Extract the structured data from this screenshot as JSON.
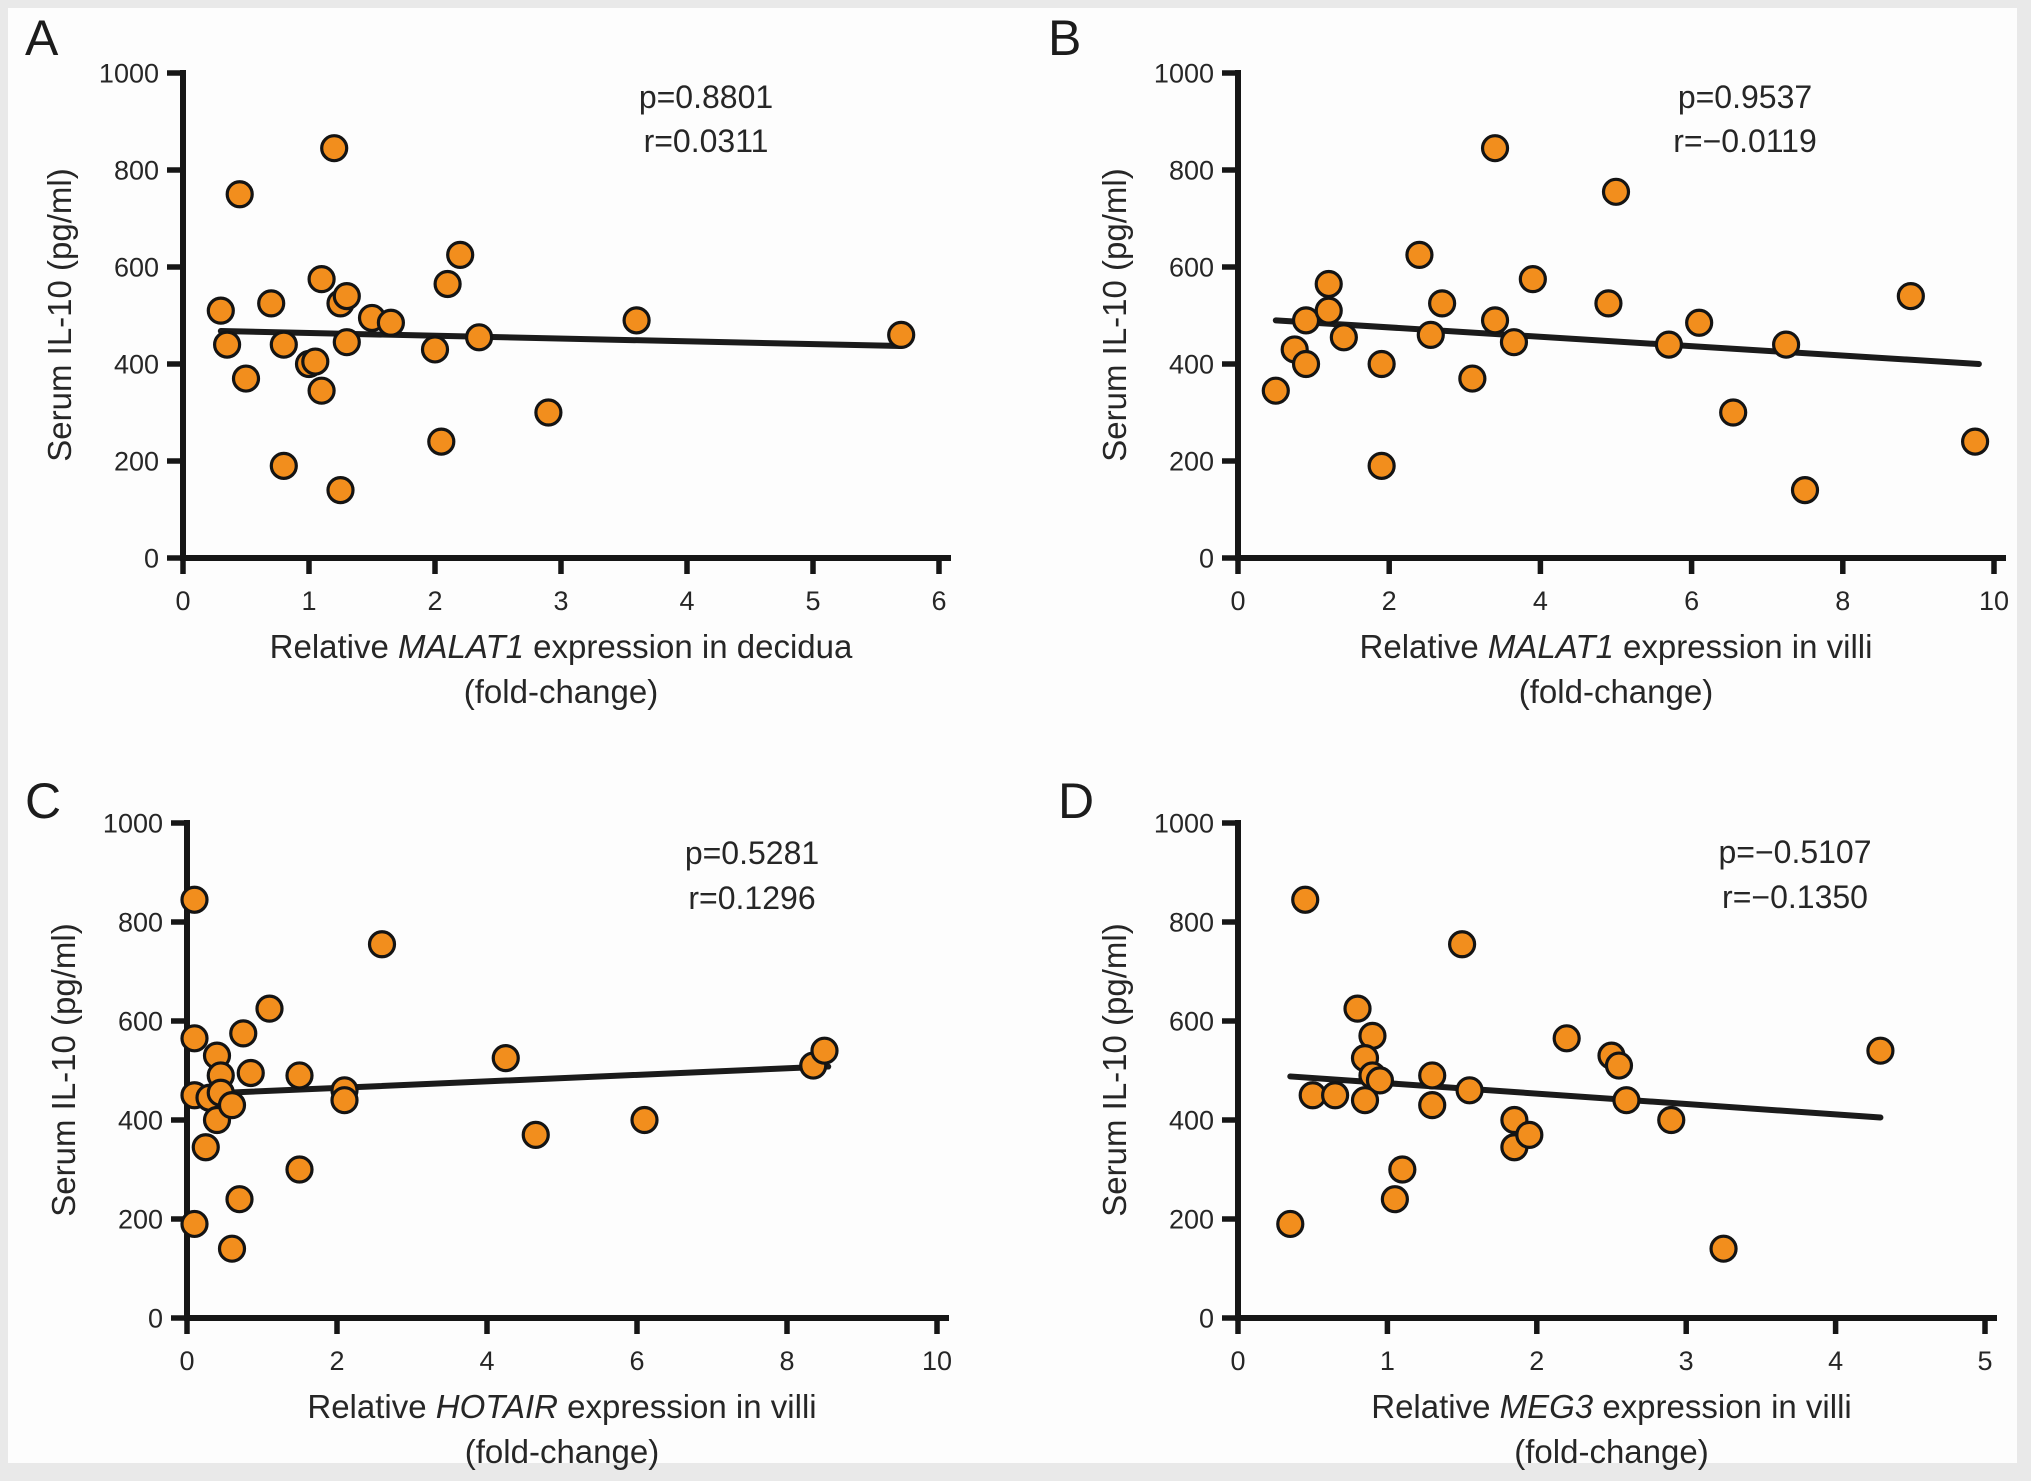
{
  "figure": {
    "background": "#fdfdfd",
    "frame_color": "#e9e9e9",
    "marker_color": "#F28E1D",
    "marker_stroke": "#141414",
    "axis_color": "#161616",
    "trend_color": "#1b1b1b",
    "text_color": "#262626"
  },
  "chart_data": [
    {
      "type": "scatter",
      "panel": "A",
      "stats": {
        "p": "p=0.8801",
        "r": "r=0.0311"
      },
      "ylabel": "Serum IL-10 (pg/ml)",
      "xlabel": {
        "prefix": "Relative ",
        "gene": "MALAT1",
        "suffix": " expression in decidua",
        "line2": "(fold-change)"
      },
      "xlim": [
        0,
        6
      ],
      "ylim": [
        0,
        1000
      ],
      "xticks": [
        0,
        1,
        2,
        3,
        4,
        5,
        6
      ],
      "yticks": [
        0,
        200,
        400,
        600,
        800,
        1000
      ],
      "grid": false,
      "points": [
        [
          0.3,
          510
        ],
        [
          0.45,
          750
        ],
        [
          0.35,
          440
        ],
        [
          0.5,
          370
        ],
        [
          0.7,
          525
        ],
        [
          0.8,
          440
        ],
        [
          0.8,
          190
        ],
        [
          1.0,
          400
        ],
        [
          1.05,
          405
        ],
        [
          1.1,
          345
        ],
        [
          1.1,
          575
        ],
        [
          1.2,
          845
        ],
        [
          1.25,
          140
        ],
        [
          1.25,
          525
        ],
        [
          1.3,
          540
        ],
        [
          1.3,
          445
        ],
        [
          1.5,
          495
        ],
        [
          1.65,
          485
        ],
        [
          2.0,
          430
        ],
        [
          2.05,
          240
        ],
        [
          2.1,
          565
        ],
        [
          2.2,
          625
        ],
        [
          2.35,
          455
        ],
        [
          2.9,
          300
        ],
        [
          3.6,
          490
        ],
        [
          5.7,
          460
        ]
      ],
      "trend": {
        "x1": 0.3,
        "y1": 468,
        "x2": 5.7,
        "y2": 437
      }
    },
    {
      "type": "scatter",
      "panel": "B",
      "stats": {
        "p": "p=0.9537",
        "r": "r=−0.0119"
      },
      "ylabel": "Serum IL-10 (pg/ml)",
      "xlabel": {
        "prefix": "Relative ",
        "gene": "MALAT1",
        "suffix": " expression in villi",
        "line2": "(fold-change)"
      },
      "xlim": [
        0,
        10
      ],
      "ylim": [
        0,
        1000
      ],
      "xticks": [
        0,
        2,
        4,
        6,
        8,
        10
      ],
      "yticks": [
        0,
        200,
        400,
        600,
        800,
        1000
      ],
      "grid": false,
      "points": [
        [
          0.5,
          345
        ],
        [
          0.75,
          430
        ],
        [
          0.9,
          400
        ],
        [
          0.9,
          490
        ],
        [
          1.2,
          565
        ],
        [
          1.2,
          510
        ],
        [
          1.4,
          455
        ],
        [
          1.9,
          400
        ],
        [
          1.9,
          190
        ],
        [
          2.4,
          625
        ],
        [
          2.55,
          460
        ],
        [
          2.7,
          525
        ],
        [
          3.1,
          370
        ],
        [
          3.4,
          845
        ],
        [
          3.4,
          490
        ],
        [
          3.65,
          445
        ],
        [
          3.9,
          575
        ],
        [
          4.9,
          525
        ],
        [
          5.0,
          755
        ],
        [
          5.7,
          440
        ],
        [
          6.1,
          485
        ],
        [
          6.55,
          300
        ],
        [
          7.25,
          440
        ],
        [
          7.5,
          140
        ],
        [
          8.9,
          540
        ],
        [
          9.75,
          240
        ]
      ],
      "trend": {
        "x1": 0.5,
        "y1": 490,
        "x2": 9.8,
        "y2": 400
      }
    },
    {
      "type": "scatter",
      "panel": "C",
      "stats": {
        "p": "p=0.5281",
        "r": "r=0.1296"
      },
      "ylabel": "Serum IL-10 (pg/ml)",
      "xlabel": {
        "prefix": "Relative ",
        "gene": "HOTAIR",
        "suffix": " expression in villi",
        "line2": "(fold-change)"
      },
      "xlim": [
        0,
        10
      ],
      "ylim": [
        0,
        1000
      ],
      "xticks": [
        0,
        2,
        4,
        6,
        8,
        10
      ],
      "yticks": [
        0,
        200,
        400,
        600,
        800,
        1000
      ],
      "grid": false,
      "points": [
        [
          0.1,
          845
        ],
        [
          0.1,
          565
        ],
        [
          0.1,
          450
        ],
        [
          0.1,
          190
        ],
        [
          0.25,
          345
        ],
        [
          0.3,
          445
        ],
        [
          0.4,
          530
        ],
        [
          0.45,
          490
        ],
        [
          0.4,
          400
        ],
        [
          0.45,
          455
        ],
        [
          0.6,
          430
        ],
        [
          0.75,
          575
        ],
        [
          0.7,
          240
        ],
        [
          0.6,
          140
        ],
        [
          0.85,
          495
        ],
        [
          1.1,
          625
        ],
        [
          1.5,
          490
        ],
        [
          1.5,
          300
        ],
        [
          2.1,
          460
        ],
        [
          2.1,
          440
        ],
        [
          2.6,
          755
        ],
        [
          4.25,
          525
        ],
        [
          4.65,
          370
        ],
        [
          6.1,
          400
        ],
        [
          8.35,
          510
        ],
        [
          8.5,
          540
        ]
      ],
      "trend": {
        "x1": 0.05,
        "y1": 452,
        "x2": 8.55,
        "y2": 508
      }
    },
    {
      "type": "scatter",
      "panel": "D",
      "stats": {
        "p": "p=−0.5107",
        "r": "r=−0.1350"
      },
      "ylabel": "Serum IL-10 (pg/ml)",
      "xlabel": {
        "prefix": "Relative ",
        "gene": "MEG3",
        "suffix": " expression in villi",
        "line2": "(fold-change)"
      },
      "xlim": [
        0,
        5
      ],
      "ylim": [
        0,
        1000
      ],
      "xticks": [
        0,
        1,
        2,
        3,
        4,
        5
      ],
      "yticks": [
        0,
        200,
        400,
        600,
        800,
        1000
      ],
      "grid": false,
      "points": [
        [
          0.45,
          845
        ],
        [
          0.35,
          190
        ],
        [
          0.5,
          450
        ],
        [
          0.65,
          450
        ],
        [
          0.8,
          625
        ],
        [
          0.9,
          570
        ],
        [
          0.85,
          525
        ],
        [
          0.9,
          490
        ],
        [
          0.95,
          480
        ],
        [
          0.85,
          440
        ],
        [
          1.05,
          240
        ],
        [
          1.1,
          300
        ],
        [
          1.3,
          490
        ],
        [
          1.3,
          430
        ],
        [
          1.5,
          755
        ],
        [
          1.55,
          460
        ],
        [
          1.85,
          400
        ],
        [
          1.85,
          345
        ],
        [
          1.95,
          370
        ],
        [
          2.2,
          565
        ],
        [
          2.5,
          530
        ],
        [
          2.55,
          510
        ],
        [
          2.6,
          440
        ],
        [
          2.9,
          400
        ],
        [
          3.25,
          140
        ],
        [
          4.3,
          540
        ]
      ],
      "trend": {
        "x1": 0.35,
        "y1": 488,
        "x2": 4.3,
        "y2": 405
      }
    }
  ]
}
